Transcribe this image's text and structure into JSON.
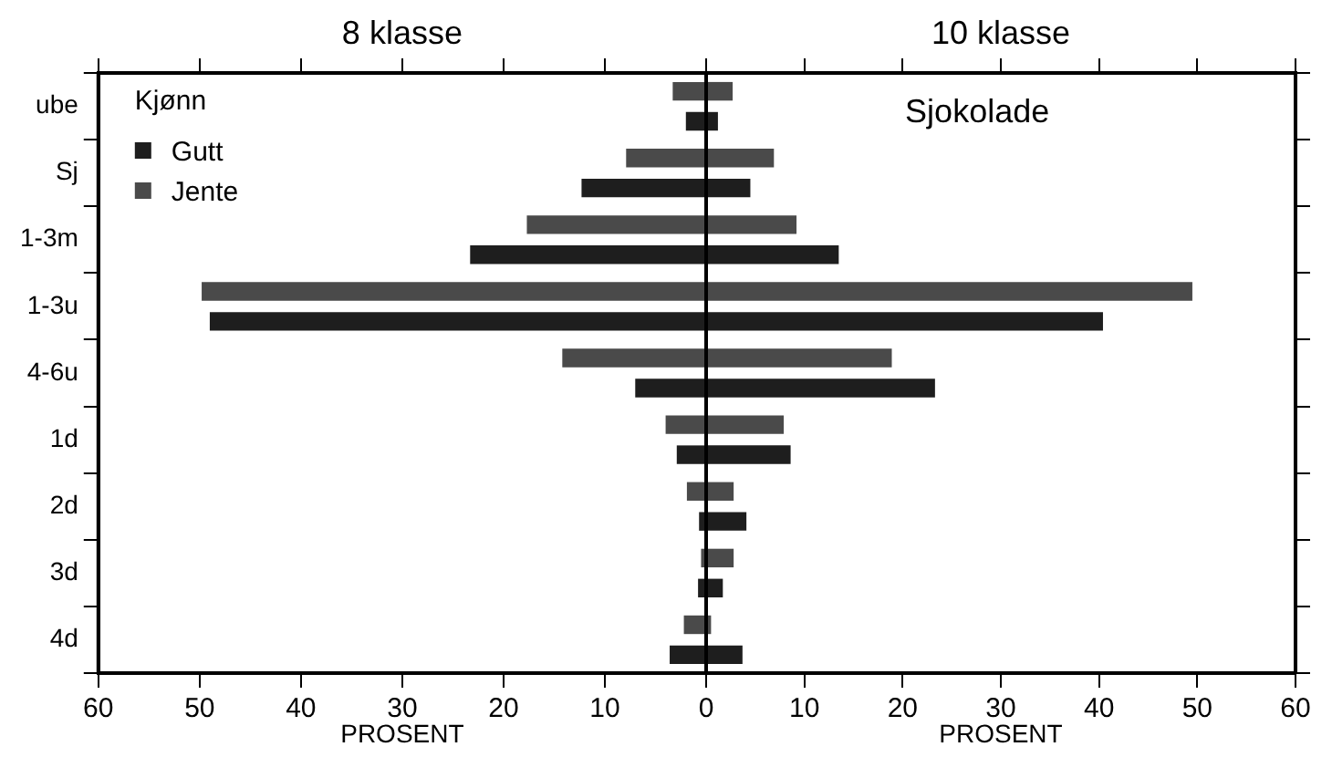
{
  "chart_data": [
    {
      "type": "bar",
      "orientation": "horizontal",
      "title": "8 klasse",
      "legend_title": "Kjønn",
      "legend": "top left",
      "xlabel": "PROSENT",
      "categories": [
        "ube",
        "Sj",
        "1-3m",
        "1-3u",
        "4-6u",
        "1d",
        "2d",
        "3d",
        "4d"
      ],
      "series": [
        {
          "name": "Gutt",
          "color": "#1e1e1e",
          "values": [
            2.0,
            12.3,
            23.3,
            49.0,
            7.0,
            2.9,
            0.7,
            0.8,
            3.6
          ]
        },
        {
          "name": "Jente",
          "color": "#4a4a4a",
          "values": [
            3.3,
            7.9,
            17.7,
            49.8,
            14.2,
            4.0,
            1.9,
            0.5,
            2.2
          ]
        }
      ],
      "xlim": [
        60,
        0
      ],
      "xticks": [
        60,
        50,
        40,
        30,
        20,
        10,
        {
          "value": 0,
          "label": null
        }
      ]
    },
    {
      "type": "bar",
      "orientation": "horizontal",
      "title": "10 klasse",
      "xlabel": "PROSENT",
      "tick_labels": "x",
      "annotations": [
        "Sjokolade"
      ],
      "series": [
        {
          "color": "#1e1e1e",
          "values": [
            1.2,
            4.5,
            13.5,
            40.4,
            23.3,
            8.6,
            4.1,
            1.7,
            3.7
          ]
        },
        {
          "color": "#4a4a4a",
          "values": [
            2.7,
            6.9,
            9.2,
            49.5,
            18.9,
            7.9,
            2.8,
            2.8,
            0.5
          ]
        }
      ],
      "xlim": [
        0,
        60
      ],
      "xticks": [
        0,
        10,
        20,
        30,
        40,
        50,
        60
      ]
    }
  ]
}
